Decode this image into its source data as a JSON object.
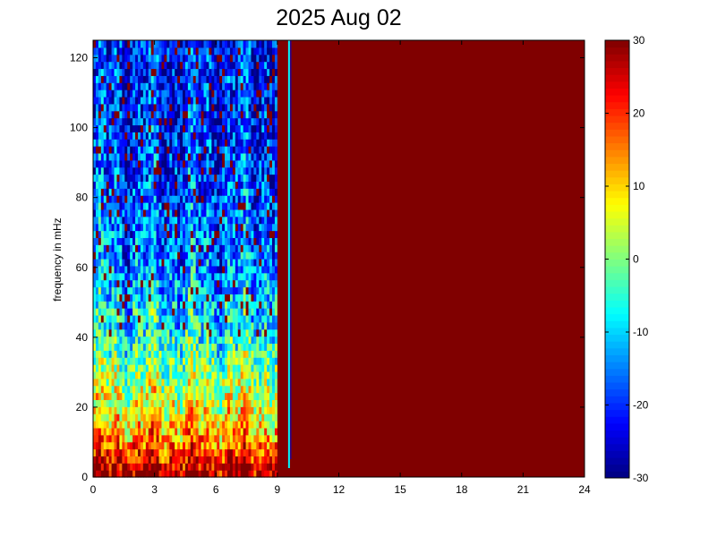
{
  "chart_data": {
    "type": "heatmap",
    "title": "2025 Aug 02",
    "xlabel": "",
    "ylabel": "frequency in mHz",
    "xlim": [
      0,
      24
    ],
    "ylim": [
      0,
      125
    ],
    "xticks": [
      "0",
      "3",
      "6",
      "9",
      "12",
      "15",
      "18",
      "21",
      "24"
    ],
    "yticks": [
      "0",
      "20",
      "40",
      "60",
      "80",
      "100",
      "120"
    ],
    "colorbar": {
      "colormap": "jet",
      "clim": [
        -30,
        30
      ],
      "ticks": [
        "-30",
        "-20",
        "-10",
        "0",
        "10",
        "20",
        "30"
      ]
    },
    "saturated_region": {
      "x_from": 9,
      "x_to": 24,
      "value": 30
    },
    "level_profile": [
      {
        "freq": 0,
        "level": 28
      },
      {
        "freq": 3,
        "level": 26
      },
      {
        "freq": 8,
        "level": 18
      },
      {
        "freq": 15,
        "level": 10
      },
      {
        "freq": 25,
        "level": 4
      },
      {
        "freq": 40,
        "level": -6
      },
      {
        "freq": 60,
        "level": -14
      },
      {
        "freq": 80,
        "level": -18
      },
      {
        "freq": 100,
        "level": -20
      },
      {
        "freq": 125,
        "level": -21
      }
    ]
  }
}
